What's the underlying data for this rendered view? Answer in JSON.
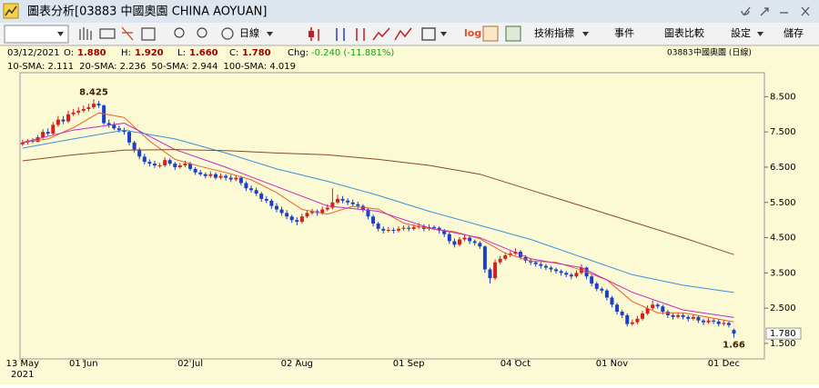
{
  "window": {
    "title": "圖表分析[03883 中國奧園 CHINA AOYUAN]"
  },
  "toolbar": {
    "period": "日線",
    "log": "log",
    "indicators": "技術指標",
    "events": "事件",
    "compare": "圖表比較",
    "settings": "設定",
    "save": "儲存"
  },
  "info": {
    "date": "03/12/2021",
    "open_label": "O:",
    "open": "1.880",
    "high_label": "H:",
    "high": "1.920",
    "low_label": "L:",
    "low": "1.660",
    "close_label": "C:",
    "close": "1.780",
    "change_label": "Chg:",
    "change": "-0.240 (-11.881%)",
    "code": "03883",
    "name": "中國奧園 (日線)"
  },
  "chart_data": {
    "type": "candlestick",
    "up_color": "#d42020",
    "down_color": "#1c3fc8",
    "xlim": [
      -0.5,
      146
    ],
    "ylim": [
      1.06,
      9.18
    ],
    "xticks": [
      {
        "value": 0,
        "label": "13 May"
      },
      {
        "value": 12,
        "label": "01 Jun"
      },
      {
        "value": 33,
        "label": "02 Jul"
      },
      {
        "value": 54,
        "label": "02 Aug"
      },
      {
        "value": 76,
        "label": "01 Sep"
      },
      {
        "value": 97,
        "label": "04 Oct"
      },
      {
        "value": 116,
        "label": "01 Nov"
      },
      {
        "value": 138,
        "label": "01 Dec"
      }
    ],
    "year_label": "2021",
    "yticks": [
      {
        "value": 1.5,
        "label": "1.500"
      },
      {
        "value": 2.5,
        "label": "2.500"
      },
      {
        "value": 3.5,
        "label": "3.500"
      },
      {
        "value": 4.5,
        "label": "4.500"
      },
      {
        "value": 5.5,
        "label": "5.500"
      },
      {
        "value": 6.5,
        "label": "6.500"
      },
      {
        "value": 7.5,
        "label": "7.500"
      },
      {
        "value": 8.5,
        "label": "8.500"
      }
    ],
    "price_tag": "1.780",
    "open": [
      7.15,
      7.2,
      7.25,
      7.22,
      7.35,
      7.5,
      7.45,
      7.7,
      7.85,
      7.8,
      8.0,
      8.05,
      8.1,
      8.15,
      8.2,
      8.3,
      8.25,
      7.75,
      7.7,
      7.6,
      7.55,
      7.5,
      7.2,
      7.0,
      6.8,
      6.65,
      6.6,
      6.55,
      6.55,
      6.7,
      6.6,
      6.5,
      6.55,
      6.6,
      6.45,
      6.35,
      6.3,
      6.25,
      6.3,
      6.2,
      6.25,
      6.2,
      6.15,
      6.2,
      6.05,
      5.9,
      5.85,
      5.75,
      5.6,
      5.55,
      5.4,
      5.3,
      5.2,
      5.1,
      5.0,
      4.95,
      5.1,
      5.2,
      5.25,
      5.2,
      5.3,
      5.35,
      5.5,
      5.6,
      5.55,
      5.5,
      5.45,
      5.4,
      5.3,
      5.1,
      4.9,
      4.75,
      4.7,
      4.72,
      4.7,
      4.75,
      4.78,
      4.75,
      4.8,
      4.82,
      4.75,
      4.8,
      4.78,
      4.7,
      4.6,
      4.4,
      4.3,
      4.45,
      4.5,
      4.4,
      4.35,
      4.25,
      3.6,
      3.35,
      3.8,
      3.9,
      4.0,
      4.05,
      4.1,
      3.95,
      3.85,
      3.8,
      3.75,
      3.7,
      3.65,
      3.6,
      3.55,
      3.5,
      3.45,
      3.4,
      3.5,
      3.65,
      3.4,
      3.2,
      3.05,
      3.0,
      2.8,
      2.6,
      2.4,
      2.3,
      2.05,
      2.1,
      2.2,
      2.35,
      2.5,
      2.6,
      2.55,
      2.4,
      2.3,
      2.25,
      2.3,
      2.25,
      2.2,
      2.25,
      2.15,
      2.1,
      2.15,
      2.12,
      2.05,
      2.08,
      1.88
    ],
    "high": [
      7.28,
      7.3,
      7.32,
      7.4,
      7.58,
      7.6,
      7.78,
      7.95,
      7.95,
      8.1,
      8.15,
      8.2,
      8.25,
      8.3,
      8.425,
      8.38,
      8.28,
      7.85,
      7.78,
      7.68,
      7.62,
      7.55,
      7.25,
      7.05,
      6.88,
      6.72,
      6.68,
      6.62,
      6.78,
      6.75,
      6.65,
      6.62,
      6.68,
      6.65,
      6.5,
      6.42,
      6.35,
      6.38,
      6.35,
      6.32,
      6.3,
      6.28,
      6.28,
      6.25,
      6.1,
      5.98,
      5.92,
      5.8,
      5.68,
      5.6,
      5.48,
      5.38,
      5.28,
      5.15,
      5.08,
      5.18,
      5.28,
      5.32,
      5.3,
      5.38,
      5.45,
      5.9,
      5.72,
      5.68,
      5.62,
      5.58,
      5.52,
      5.45,
      5.35,
      5.15,
      4.95,
      4.82,
      4.8,
      4.78,
      4.82,
      4.85,
      4.85,
      4.88,
      4.92,
      4.88,
      4.88,
      4.85,
      4.82,
      4.75,
      4.65,
      4.48,
      4.52,
      4.58,
      4.55,
      4.45,
      4.4,
      4.28,
      3.65,
      3.88,
      3.98,
      4.08,
      4.12,
      4.2,
      4.15,
      4.0,
      3.92,
      3.85,
      3.8,
      3.75,
      3.7,
      3.65,
      3.6,
      3.55,
      3.5,
      3.58,
      3.75,
      3.68,
      3.45,
      3.25,
      3.1,
      3.05,
      2.85,
      2.65,
      2.45,
      2.35,
      2.18,
      2.28,
      2.42,
      2.58,
      2.72,
      2.65,
      2.6,
      2.45,
      2.35,
      2.38,
      2.35,
      2.3,
      2.32,
      2.3,
      2.2,
      2.22,
      2.2,
      2.18,
      2.15,
      2.12,
      1.92
    ],
    "low": [
      7.1,
      7.15,
      7.18,
      7.2,
      7.3,
      7.4,
      7.42,
      7.65,
      7.72,
      7.75,
      7.95,
      7.98,
      8.05,
      8.08,
      8.15,
      8.18,
      7.7,
      7.62,
      7.55,
      7.48,
      7.42,
      7.12,
      6.92,
      6.72,
      6.58,
      6.52,
      6.48,
      6.48,
      6.5,
      6.55,
      6.42,
      6.45,
      6.5,
      6.4,
      6.28,
      6.25,
      6.18,
      6.2,
      6.15,
      6.15,
      6.12,
      6.08,
      6.1,
      5.98,
      5.82,
      5.78,
      5.68,
      5.52,
      5.48,
      5.32,
      5.22,
      5.12,
      5.02,
      4.92,
      4.85,
      4.9,
      5.05,
      5.15,
      5.12,
      5.15,
      5.25,
      5.3,
      5.45,
      5.48,
      5.42,
      5.38,
      5.32,
      5.22,
      5.02,
      4.82,
      4.68,
      4.62,
      4.65,
      4.62,
      4.65,
      4.7,
      4.68,
      4.7,
      4.75,
      4.68,
      4.7,
      4.72,
      4.62,
      4.52,
      4.32,
      4.22,
      4.25,
      4.4,
      4.32,
      4.28,
      4.18,
      3.5,
      3.2,
      3.3,
      3.75,
      3.85,
      3.95,
      4.0,
      3.88,
      3.78,
      3.72,
      3.68,
      3.62,
      3.58,
      3.52,
      3.48,
      3.42,
      3.38,
      3.32,
      3.35,
      3.45,
      3.32,
      3.12,
      2.98,
      2.92,
      2.72,
      2.52,
      2.32,
      2.22,
      1.98,
      2.0,
      2.05,
      2.15,
      2.3,
      2.45,
      2.48,
      2.32,
      2.22,
      2.18,
      2.2,
      2.18,
      2.12,
      2.15,
      2.08,
      2.02,
      2.05,
      2.05,
      1.98,
      2.0,
      1.95,
      1.66
    ],
    "close": [
      7.2,
      7.25,
      7.22,
      7.35,
      7.5,
      7.45,
      7.7,
      7.85,
      7.8,
      8.0,
      8.05,
      8.1,
      8.15,
      8.2,
      8.3,
      8.25,
      7.75,
      7.7,
      7.6,
      7.55,
      7.5,
      7.2,
      7.0,
      6.8,
      6.65,
      6.6,
      6.55,
      6.55,
      6.7,
      6.6,
      6.5,
      6.55,
      6.6,
      6.45,
      6.35,
      6.3,
      6.25,
      6.3,
      6.2,
      6.25,
      6.2,
      6.15,
      6.2,
      6.05,
      5.9,
      5.85,
      5.75,
      5.6,
      5.55,
      5.4,
      5.3,
      5.2,
      5.1,
      5.0,
      4.95,
      5.1,
      5.2,
      5.25,
      5.2,
      5.3,
      5.35,
      5.5,
      5.6,
      5.55,
      5.5,
      5.45,
      5.4,
      5.3,
      5.1,
      4.9,
      4.75,
      4.7,
      4.72,
      4.7,
      4.75,
      4.78,
      4.75,
      4.8,
      4.82,
      4.75,
      4.8,
      4.78,
      4.7,
      4.6,
      4.4,
      4.3,
      4.45,
      4.5,
      4.4,
      4.35,
      4.25,
      3.6,
      3.35,
      3.8,
      3.9,
      4.0,
      4.05,
      4.1,
      3.95,
      3.85,
      3.8,
      3.75,
      3.7,
      3.65,
      3.6,
      3.55,
      3.5,
      3.45,
      3.4,
      3.5,
      3.65,
      3.4,
      3.2,
      3.05,
      3.0,
      2.8,
      2.6,
      2.4,
      2.3,
      2.05,
      2.1,
      2.2,
      2.35,
      2.5,
      2.6,
      2.55,
      2.4,
      2.3,
      2.25,
      2.3,
      2.25,
      2.2,
      2.25,
      2.15,
      2.1,
      2.15,
      2.12,
      2.05,
      2.08,
      2.02,
      1.78
    ],
    "series": [
      {
        "name": "10-SMA: 2.111",
        "color": "#e8602a",
        "x": [
          0,
          5,
          10,
          15,
          20,
          25,
          30,
          35,
          40,
          45,
          50,
          55,
          60,
          65,
          70,
          75,
          80,
          85,
          90,
          95,
          100,
          105,
          110,
          115,
          120,
          125,
          130,
          135,
          140
        ],
        "values": [
          7.2,
          7.3,
          7.62,
          8.04,
          7.91,
          7.24,
          6.72,
          6.52,
          6.35,
          6.14,
          5.78,
          5.3,
          5.17,
          5.39,
          5.31,
          4.91,
          4.76,
          4.67,
          4.47,
          4.06,
          3.84,
          3.8,
          3.58,
          3.3,
          2.69,
          2.37,
          2.37,
          2.24,
          2.111
        ]
      },
      {
        "name": "20-SMA: 2.236",
        "color": "#c02ac8",
        "x": [
          0,
          10,
          20,
          30,
          40,
          50,
          60,
          70,
          80,
          90,
          100,
          110,
          120,
          130,
          140
        ],
        "values": [
          7.2,
          7.55,
          7.75,
          7.0,
          6.5,
          5.95,
          5.4,
          5.25,
          4.78,
          4.5,
          3.9,
          3.65,
          2.95,
          2.45,
          2.236
        ]
      },
      {
        "name": "50-SMA: 2.944",
        "color": "#3c8fdc",
        "x": [
          0,
          10,
          20,
          30,
          40,
          50,
          60,
          70,
          80,
          90,
          100,
          110,
          120,
          130,
          140
        ],
        "values": [
          7.04,
          7.3,
          7.55,
          7.3,
          6.9,
          6.45,
          6.1,
          5.7,
          5.25,
          4.85,
          4.45,
          3.95,
          3.45,
          3.15,
          2.944
        ]
      },
      {
        "name": "100-SMA: 4.019",
        "color": "#8a4a28",
        "x": [
          0,
          10,
          20,
          30,
          40,
          50,
          60,
          70,
          80,
          90,
          100,
          110,
          120,
          130,
          140
        ],
        "values": [
          6.68,
          6.85,
          6.98,
          7.0,
          6.97,
          6.9,
          6.85,
          6.72,
          6.55,
          6.3,
          5.85,
          5.4,
          4.95,
          4.5,
          4.019
        ]
      }
    ]
  }
}
